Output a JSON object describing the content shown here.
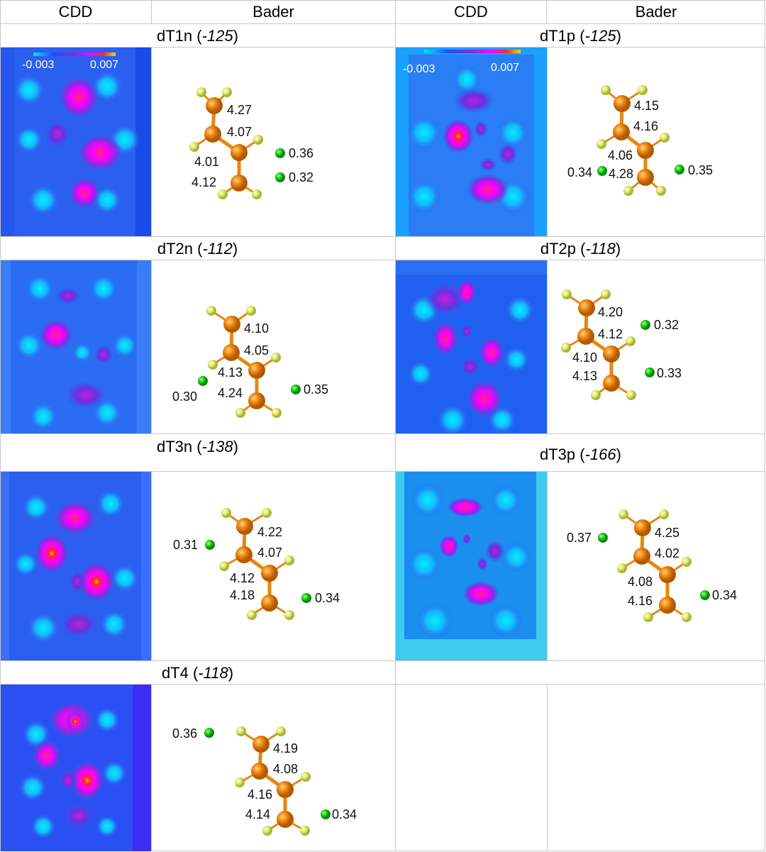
{
  "headers": {
    "left_cdd": "CDD",
    "left_bader": "Bader",
    "right_cdd": "CDD",
    "right_bader": "Bader"
  },
  "colorbar": {
    "min": "-0.003",
    "max": "0.007",
    "colors": [
      "#00e5ff",
      "#1f4dff",
      "#8a2be2",
      "#ff00ff",
      "#ff2a2a",
      "#ffd400"
    ]
  },
  "colors": {
    "background_blue": "#2b5ff0",
    "carbon": "#e8870e",
    "hydrogen": "#e3ef7a",
    "sodium": "#18c718",
    "bond": "#e8870e"
  },
  "panels": [
    {
      "id": "dT1n",
      "name": "dT1n",
      "energy": "-125",
      "carbon_labels": [
        "4.27",
        "4.07",
        "4.01",
        "4.12"
      ],
      "na_labels": [
        "0.36",
        "0.32"
      ]
    },
    {
      "id": "dT1p",
      "name": "dT1p",
      "energy": "-125",
      "carbon_labels": [
        "4.15",
        "4.16",
        "4.06",
        "4.28"
      ],
      "na_labels": [
        "0.34",
        "0.35"
      ]
    },
    {
      "id": "dT2n",
      "name": "dT2n",
      "energy": "-112",
      "carbon_labels": [
        "4.10",
        "4.05",
        "4.13",
        "4.24"
      ],
      "na_labels": [
        "0.30",
        "0.35"
      ]
    },
    {
      "id": "dT2p",
      "name": "dT2p",
      "energy": "-118",
      "carbon_labels": [
        "4.20",
        "4.12",
        "4.10",
        "4.13"
      ],
      "na_labels": [
        "0.32",
        "0.33"
      ]
    },
    {
      "id": "dT3n",
      "name": "dT3n",
      "energy": "-138",
      "carbon_labels": [
        "4.22",
        "4.07",
        "4.12",
        "4.18"
      ],
      "na_labels": [
        "0.31",
        "0.34"
      ]
    },
    {
      "id": "dT3p",
      "name": "dT3p",
      "energy": "-166",
      "carbon_labels": [
        "4.25",
        "4.02",
        "4.08",
        "4.16"
      ],
      "na_labels": [
        "0.37",
        "0.34"
      ]
    },
    {
      "id": "dT4",
      "name": "dT4",
      "energy": "-118",
      "carbon_labels": [
        "4.19",
        "4.08",
        "4.16",
        "4.14"
      ],
      "na_labels": [
        "0.36",
        "0.34"
      ]
    }
  ]
}
